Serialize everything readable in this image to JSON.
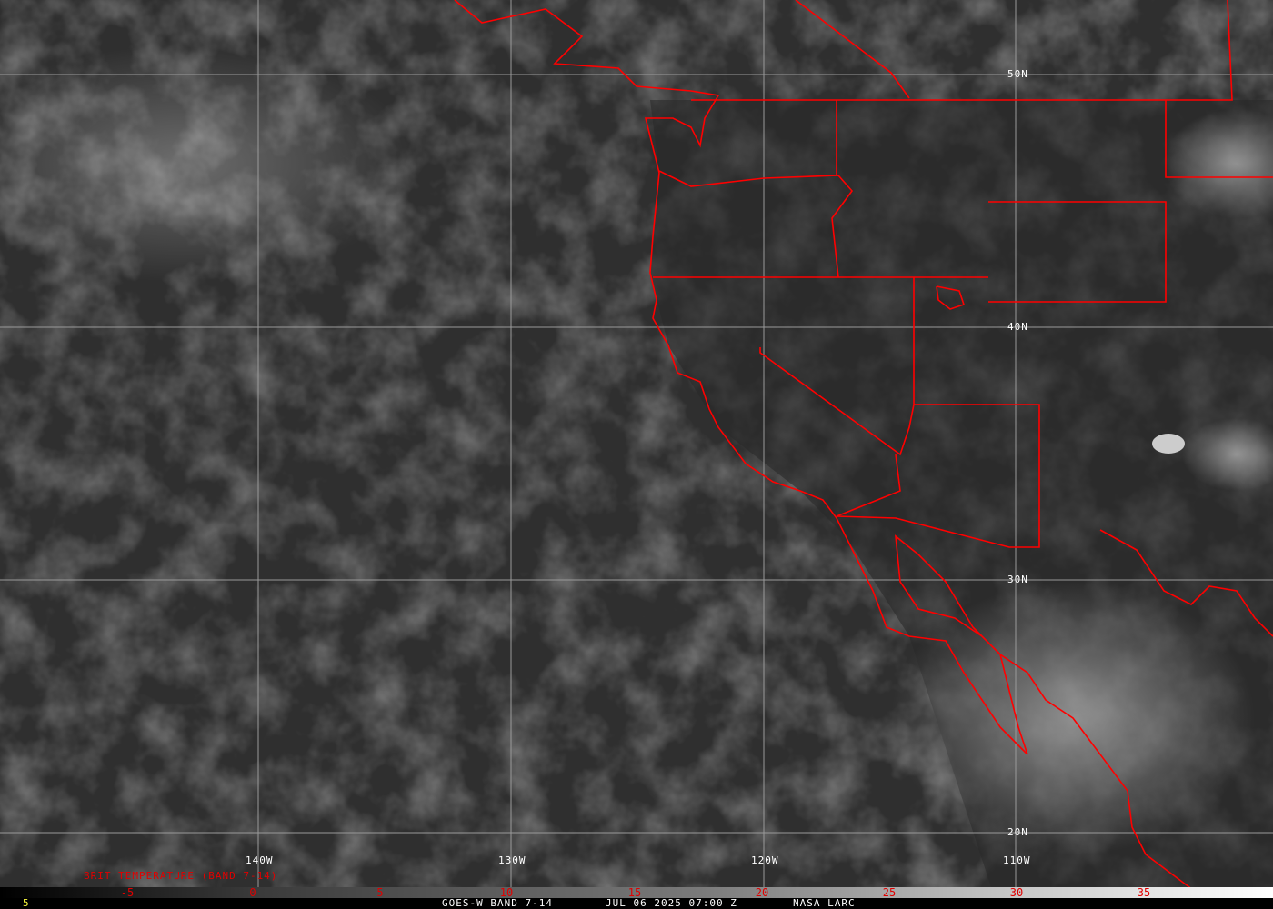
{
  "image": {
    "type": "satellite-infrared",
    "border_color": "#ff0000",
    "grid_color": "#a0a0a0"
  },
  "grid": {
    "latitudes": [
      "50N",
      "40N",
      "30N",
      "20N"
    ],
    "longitudes": [
      "140W",
      "130W",
      "120W",
      "110W"
    ]
  },
  "legend": {
    "title": "BRIT TEMPERATURE (BAND 7-14)",
    "ticks": [
      "-5",
      "0",
      "5",
      "10",
      "15",
      "20",
      "25",
      "30",
      "35"
    ]
  },
  "footer": {
    "left_value": "5",
    "satellite": "GOES-W BAND 7-14",
    "datetime": "JUL 06 2025 07:00 Z",
    "credit": "NASA LARC"
  }
}
